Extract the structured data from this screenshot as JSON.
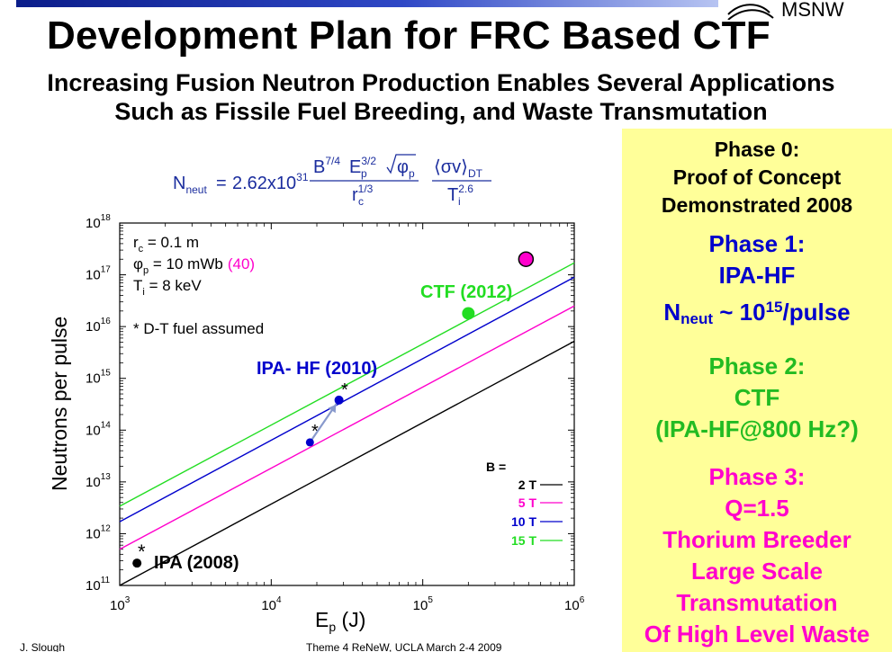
{
  "header": {
    "title": "Development Plan for FRC Based CTF",
    "subtitle_line1": "Increasing Fusion Neutron Production Enables Several Applications",
    "subtitle_line2": "Such as Fissile Fuel Breeding, and Waste Transmutation",
    "logo_text": "MSNW"
  },
  "formula": {
    "lhs": "N",
    "lhs_sub": "neut",
    "equals": "=",
    "coefficient": "2.62x10",
    "coefficient_exp": "31",
    "num_b": "B",
    "num_b_exp": "7/4",
    "num_e": "E",
    "num_e_sub": "p",
    "num_e_exp": "3/2",
    "num_phi": "φ",
    "num_phi_sub": "p",
    "den_r": "r",
    "den_r_sub": "c",
    "den_r_exp": "1/3",
    "sigma_v": "⟨σv⟩",
    "sigma_sub": "DT",
    "den_t": "T",
    "den_t_sub": "i",
    "den_t_exp": "2.6"
  },
  "chart_data": {
    "type": "line",
    "x_scale": "log",
    "y_scale": "log",
    "xlim": [
      1000,
      1000000
    ],
    "ylim": [
      100000000000,
      1000000000000000000
    ],
    "xlabel": "E",
    "xlabel_sub": "p",
    "xlabel_suffix": " (J)",
    "ylabel": "Neutrons per pulse",
    "x_ticks": [
      {
        "base": "10",
        "exp": "3",
        "value": 1000
      },
      {
        "base": "10",
        "exp": "4",
        "value": 10000
      },
      {
        "base": "10",
        "exp": "5",
        "value": 100000
      },
      {
        "base": "10",
        "exp": "6",
        "value": 1000000
      }
    ],
    "y_ticks": [
      {
        "base": "10",
        "exp": "11",
        "value": 100000000000
      },
      {
        "base": "10",
        "exp": "12",
        "value": 1000000000000
      },
      {
        "base": "10",
        "exp": "13",
        "value": 10000000000000
      },
      {
        "base": "10",
        "exp": "14",
        "value": 100000000000000
      },
      {
        "base": "10",
        "exp": "15",
        "value": 1000000000000000
      },
      {
        "base": "10",
        "exp": "16",
        "value": 10000000000000000
      },
      {
        "base": "10",
        "exp": "17",
        "value": 100000000000000000
      },
      {
        "base": "10",
        "exp": "18",
        "value": 1000000000000000000
      }
    ],
    "series": [
      {
        "name": "2 T",
        "color": "#000000",
        "x": [
          1000,
          1000000
        ],
        "y": [
          100000000000,
          5200000000000000
        ]
      },
      {
        "name": "5 T",
        "color": "#ff00cc",
        "x": [
          1000,
          1000000
        ],
        "y": [
          500000000000,
          25000000000000000
        ]
      },
      {
        "name": "10 T",
        "color": "#0000cc",
        "x": [
          1000,
          1000000
        ],
        "y": [
          1700000000000,
          90000000000000000
        ]
      },
      {
        "name": "15 T",
        "color": "#22dd22",
        "x": [
          1000,
          1000000
        ],
        "y": [
          3400000000000,
          170000000000000000
        ]
      }
    ],
    "points": [
      {
        "label": "IPA (2008)",
        "x": 1300,
        "y": 270000000000,
        "color": "#000000"
      },
      {
        "label": "",
        "x": 18000,
        "y": 58000000000000,
        "color": "#0000cc"
      },
      {
        "label": "IPA- HF (2010)",
        "x": 28000,
        "y": 380000000000000,
        "color": "#0000cc"
      },
      {
        "label": "CTF (2012)",
        "x": 200000,
        "y": 18000000000000000,
        "color": "#22dd22"
      },
      {
        "label": "",
        "x": 480000,
        "y": 200000000000000000,
        "color": "#ff00cc"
      }
    ],
    "annotations": {
      "rc": "r",
      "rc_sub": "c",
      "rc_value": " = 0.1 m",
      "phi": "φ",
      "phi_sub": "p",
      "phi_value": " = 10 mWb",
      "phi_value_alt": "(40)",
      "ti": "T",
      "ti_sub": "i",
      "ti_value": " = 8 keV",
      "fuel_note": "* D-T fuel assumed",
      "star": "*",
      "legend_title": "B ="
    },
    "legend_position": "lower-right",
    "grid": false
  },
  "phases": {
    "phase0": {
      "line1": "Phase 0:",
      "line2": "Proof of Concept",
      "line3": "Demonstrated 2008"
    },
    "phase1": {
      "line1": "Phase 1:",
      "line2": "IPA-HF",
      "neut": "N",
      "neut_sub": "neut",
      "neut_mid": " ~ 10",
      "neut_exp": "15",
      "neut_tail": "/pulse"
    },
    "phase2": {
      "line1": "Phase 2:",
      "line2": "CTF",
      "line3": "(IPA-HF@800 Hz?)"
    },
    "phase3": {
      "line1": "Phase 3:",
      "line2": "Q=1.5",
      "line3": "Thorium Breeder",
      "line4": "Large Scale",
      "line5": "Transmutation",
      "line6": "Of High Level Waste"
    }
  },
  "footer": {
    "left": "J. Slough",
    "right": "Theme 4 ReNeW, UCLA March 2-4 2009"
  },
  "colors": {
    "panel": "#ffff99",
    "phase1": "#0000cc",
    "phase2": "#22bb22",
    "phase3": "#ff00cc"
  }
}
